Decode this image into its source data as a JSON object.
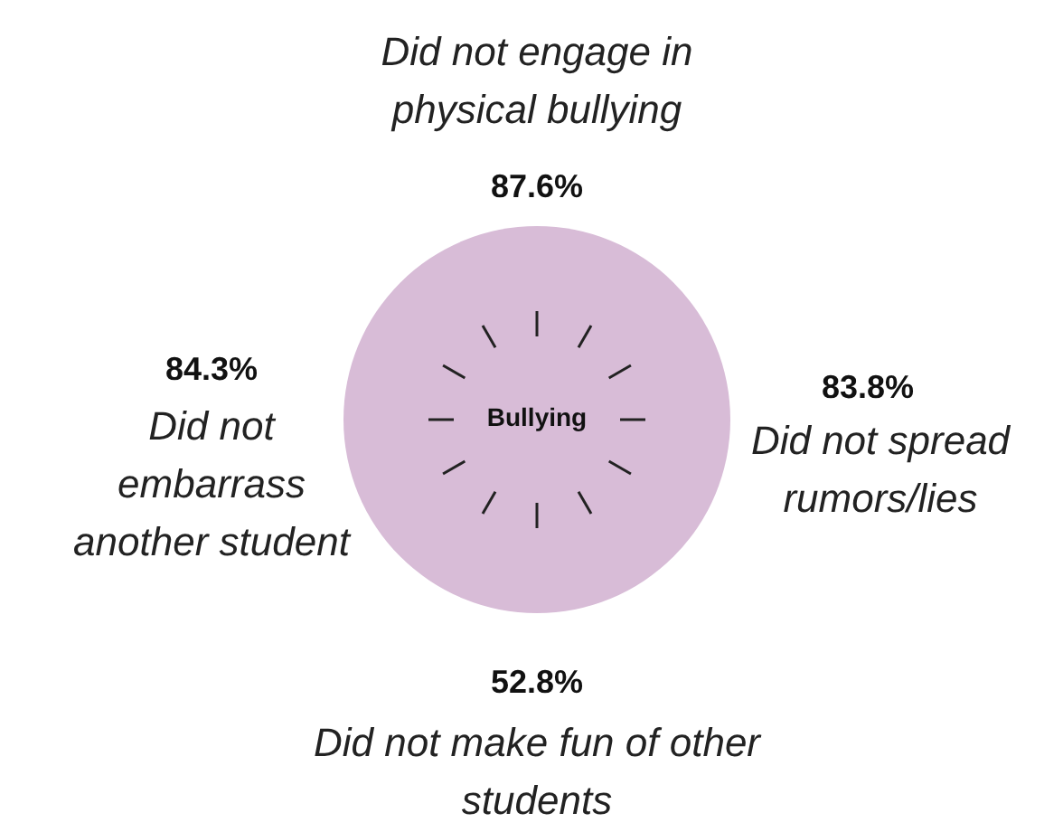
{
  "chart_data": {
    "type": "other",
    "title": "Bullying",
    "categories": [
      "Did not engage in physical bullying",
      "Did not spread rumors/lies",
      "Did not make fun of other students",
      "Did not embarrass another student"
    ],
    "values": [
      87.6,
      83.8,
      52.8,
      84.3
    ],
    "value_labels": [
      "87.6%",
      "83.8%",
      "52.8%",
      "84.3%"
    ],
    "color": "#d8bcd7"
  }
}
